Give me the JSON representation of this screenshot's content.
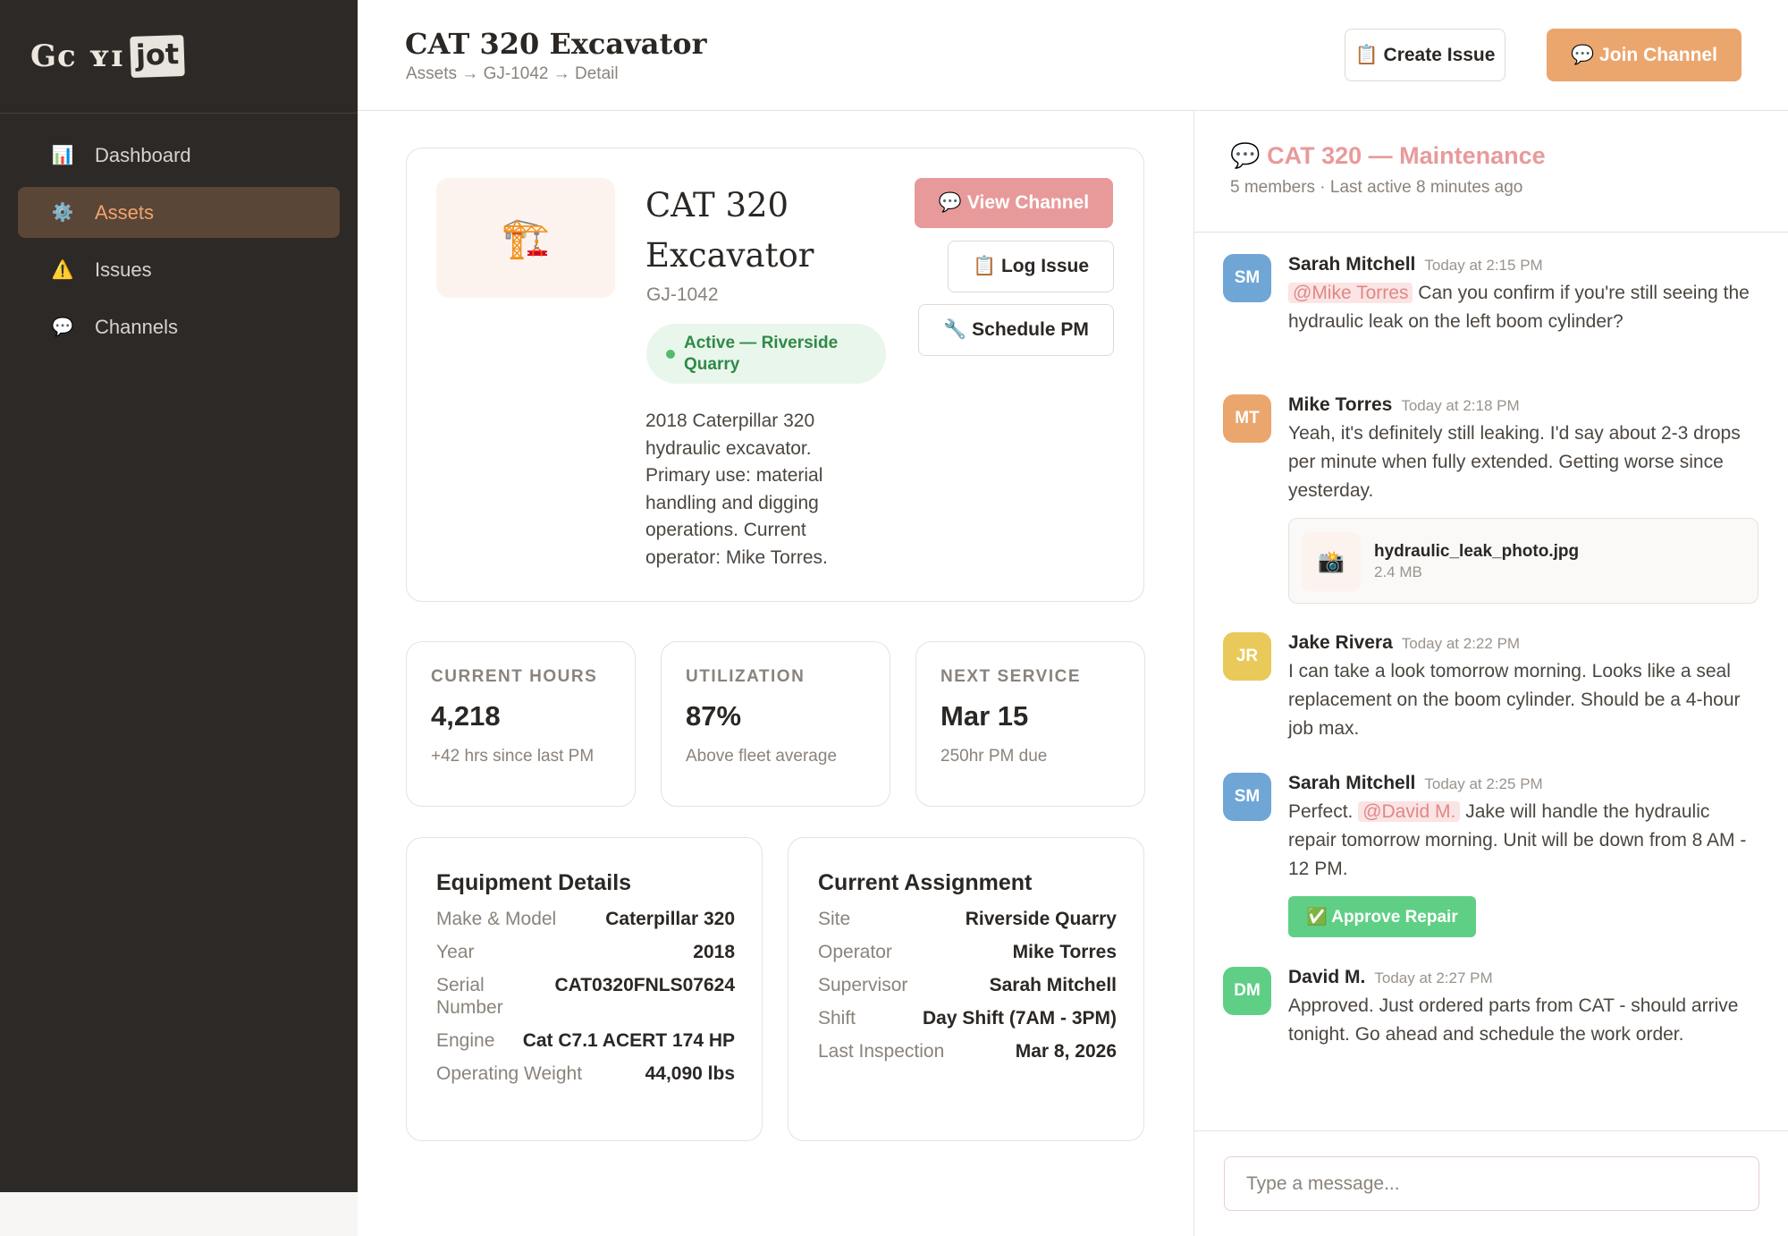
{
  "app": {
    "logo_text": "Gc ʏɪ",
    "logo_box": "jot"
  },
  "sidebar": {
    "items": [
      {
        "label": "Dashboard",
        "icon": "bar-chart-icon",
        "glyph": "📊"
      },
      {
        "label": "Assets",
        "icon": "gear-icon",
        "glyph": "⚙️",
        "active": true
      },
      {
        "label": "Issues",
        "icon": "warning-icon",
        "glyph": "⚠️"
      },
      {
        "label": "Channels",
        "icon": "speech-bubble-icon",
        "glyph": "💬"
      }
    ]
  },
  "header": {
    "title": "CAT 320 Excavator",
    "breadcrumb": "Assets → GJ-1042 → Detail",
    "create_issue": "📋 Create Issue",
    "join_channel": "💬 Join Channel"
  },
  "asset": {
    "thumb_glyph": "🏗️",
    "name": "CAT 320 Excavator",
    "id": "GJ-1042",
    "status": "Active — Riverside Quarry",
    "description": "2018 Caterpillar 320 hydraulic excavator. Primary use: material handling and digging operations. Current operator: Mike Torres.",
    "view_channel": "💬 View Channel",
    "log_issue": "📋 Log Issue",
    "schedule_pm": "🔧 Schedule PM"
  },
  "stats": [
    {
      "label": "CURRENT HOURS",
      "value": "4,218",
      "sub": "+42 hrs since last PM"
    },
    {
      "label": "UTILIZATION",
      "value": "87%",
      "sub": "Above fleet average"
    },
    {
      "label": "NEXT SERVICE",
      "value": "Mar 15",
      "sub": "250hr PM due"
    }
  ],
  "equipment": {
    "title": "Equipment Details",
    "rows": [
      {
        "label": "Make & Model",
        "value": "Caterpillar 320"
      },
      {
        "label": "Year",
        "value": "2018"
      },
      {
        "label": "Serial Number",
        "value": "CAT0320FNLS07624"
      },
      {
        "label": "Engine",
        "value": "Cat C7.1 ACERT 174 HP"
      },
      {
        "label": "Operating Weight",
        "value": "44,090 lbs"
      }
    ]
  },
  "assignment": {
    "title": "Current Assignment",
    "rows": [
      {
        "label": "Site",
        "value": "Riverside Quarry"
      },
      {
        "label": "Operator",
        "value": "Mike Torres"
      },
      {
        "label": "Supervisor",
        "value": "Sarah Mitchell"
      },
      {
        "label": "Shift",
        "value": "Day Shift (7AM - 3PM)"
      },
      {
        "label": "Last Inspection",
        "value": "Mar 8, 2026"
      }
    ]
  },
  "channel": {
    "title": "💬 CAT 320 — Maintenance",
    "subtitle": "5 members · Last active 8 minutes ago",
    "messages": [
      {
        "initials": "SM",
        "color": "#6fa6d6",
        "author": "Sarah Mitchell",
        "time": "Today at 2:15 PM",
        "mention": "@Mike Torres",
        "text": " Can you confirm if you're still seeing the hydraulic leak on the left boom cylinder?"
      },
      {
        "initials": "MT",
        "color": "#eba66e",
        "author": "Mike Torres",
        "time": "Today at 2:18 PM",
        "text": "Yeah, it's definitely still leaking. I'd say about 2-3 drops per minute when fully extended. Getting worse since yesterday.",
        "attachment": {
          "glyph": "📸",
          "name": "hydraulic_leak_photo.jpg",
          "size": "2.4 MB"
        }
      },
      {
        "initials": "JR",
        "color": "#e8c95a",
        "author": "Jake Rivera",
        "time": "Today at 2:22 PM",
        "text": "I can take a look tomorrow morning. Looks like a seal replacement on the boom cylinder. Should be a 4-hour job max."
      },
      {
        "initials": "SM",
        "color": "#6fa6d6",
        "author": "Sarah Mitchell",
        "time": "Today at 2:25 PM",
        "pre": "Perfect. ",
        "mention": "@David M.",
        "text": " Jake will handle the hydraulic repair tomorrow morning. Unit will be down from 8 AM - 12 PM.",
        "action": "✅ Approve Repair"
      },
      {
        "initials": "DM",
        "color": "#5fcf86",
        "author": "David M.",
        "time": "Today at 2:27 PM",
        "text": "Approved. Just ordered parts from CAT - should arrive tonight. Go ahead and schedule the work order."
      }
    ],
    "composer_placeholder": "Type a message..."
  }
}
